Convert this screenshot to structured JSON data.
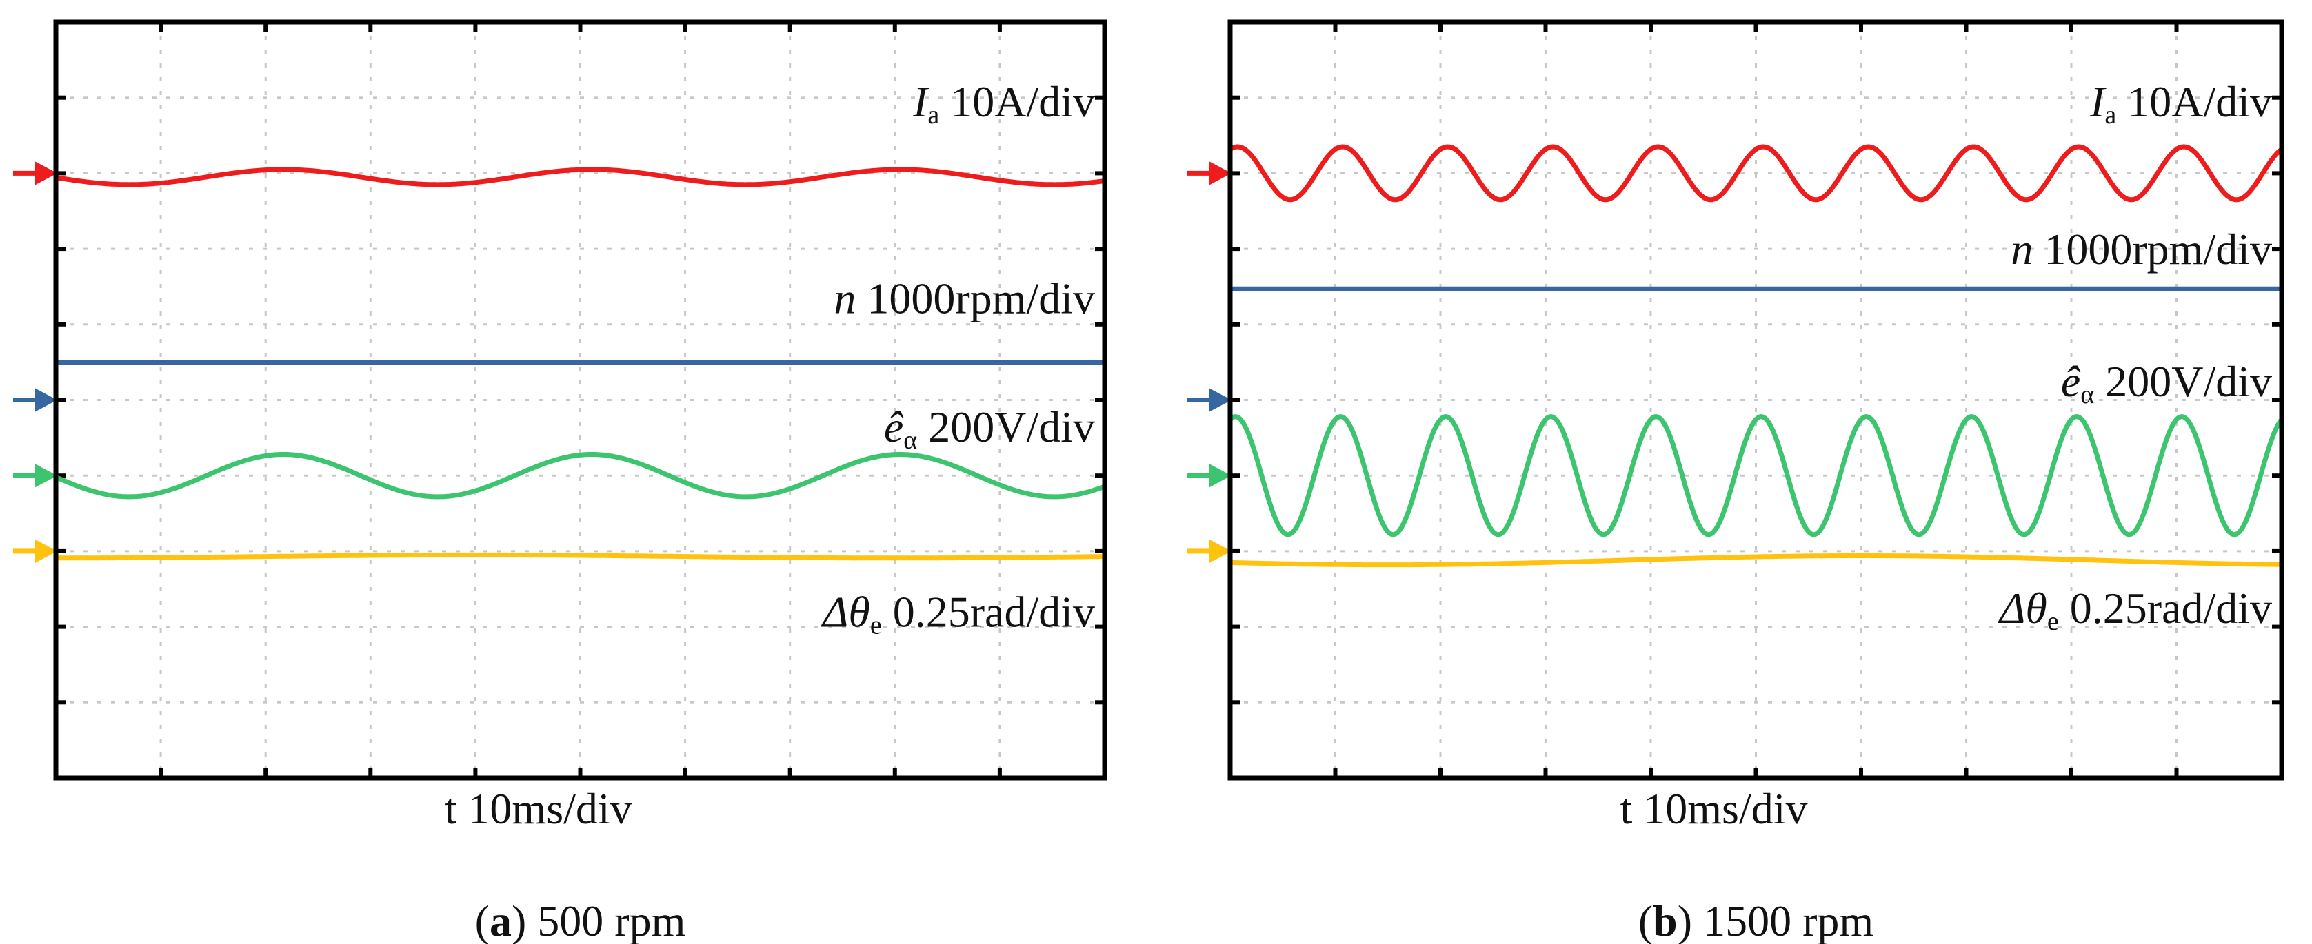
{
  "chart_data": [
    {
      "type": "line",
      "id": "a",
      "caption_letter": "a",
      "caption_text": " 500 rpm",
      "xlabel": "t 10ms/div",
      "x_divisions": 10,
      "y_divisions": 10,
      "grid": true,
      "series": [
        {
          "name": "Ia",
          "symbol": "I",
          "sub": "a",
          "scale": " 10A/div",
          "color": "#ee1c1c",
          "marker_div": 2.0,
          "center_div": 2.05,
          "amp_div": 0.1,
          "period_div": 2.94,
          "peak_div": 2.17,
          "label_div": 1.25
        },
        {
          "name": "n",
          "symbol": "n",
          "sub": "",
          "scale": " 1000rpm/div",
          "color": "#3767a0",
          "marker_div": 5.0,
          "center_div": 4.5,
          "amp_div": 0,
          "period_div": 10,
          "peak_div": 0,
          "label_div": 3.85
        },
        {
          "name": "e_alpha_hat",
          "symbol": "ê",
          "sub": "α",
          "scale": " 200V/div",
          "color": "#3cc46e",
          "marker_div": 6.0,
          "center_div": 6.0,
          "amp_div": 0.28,
          "period_div": 2.94,
          "peak_div": 2.17,
          "label_div": 5.55
        },
        {
          "name": "delta_theta_e",
          "symbol": "Δθ",
          "sub": "e",
          "scale": " 0.25rad/div",
          "color": "#ffc20e",
          "marker_div": 7.0,
          "center_div": 7.07,
          "amp_div": 0.02,
          "period_div": 8,
          "peak_div": 4,
          "label_div": 8.0
        }
      ]
    },
    {
      "type": "line",
      "id": "b",
      "caption_letter": "b",
      "caption_text": " 1500 rpm",
      "xlabel": "t 10ms/div",
      "x_divisions": 10,
      "y_divisions": 10,
      "grid": true,
      "series": [
        {
          "name": "Ia",
          "symbol": "I",
          "sub": "a",
          "scale": " 10A/div",
          "color": "#ee1c1c",
          "marker_div": 2.0,
          "center_div": 2.0,
          "amp_div": 0.35,
          "period_div": 1.0,
          "peak_div": 0.07,
          "label_div": 1.25
        },
        {
          "name": "n",
          "symbol": "n",
          "sub": "",
          "scale": " 1000rpm/div",
          "color": "#3767a0",
          "marker_div": 5.0,
          "center_div": 3.53,
          "amp_div": 0,
          "period_div": 10,
          "peak_div": 0,
          "label_div": 3.2
        },
        {
          "name": "e_alpha_hat",
          "symbol": "ê",
          "sub": "α",
          "scale": " 200V/div",
          "color": "#3cc46e",
          "marker_div": 6.0,
          "center_div": 6.0,
          "amp_div": 0.78,
          "period_div": 1.0,
          "peak_div": 0.05,
          "label_div": 4.95
        },
        {
          "name": "delta_theta_e",
          "symbol": "Δθ",
          "sub": "e",
          "scale": " 0.25rad/div",
          "color": "#ffc20e",
          "marker_div": 7.0,
          "center_div": 7.12,
          "amp_div": 0.06,
          "period_div": 9,
          "peak_div": 6.0,
          "label_div": 7.95
        }
      ]
    }
  ]
}
